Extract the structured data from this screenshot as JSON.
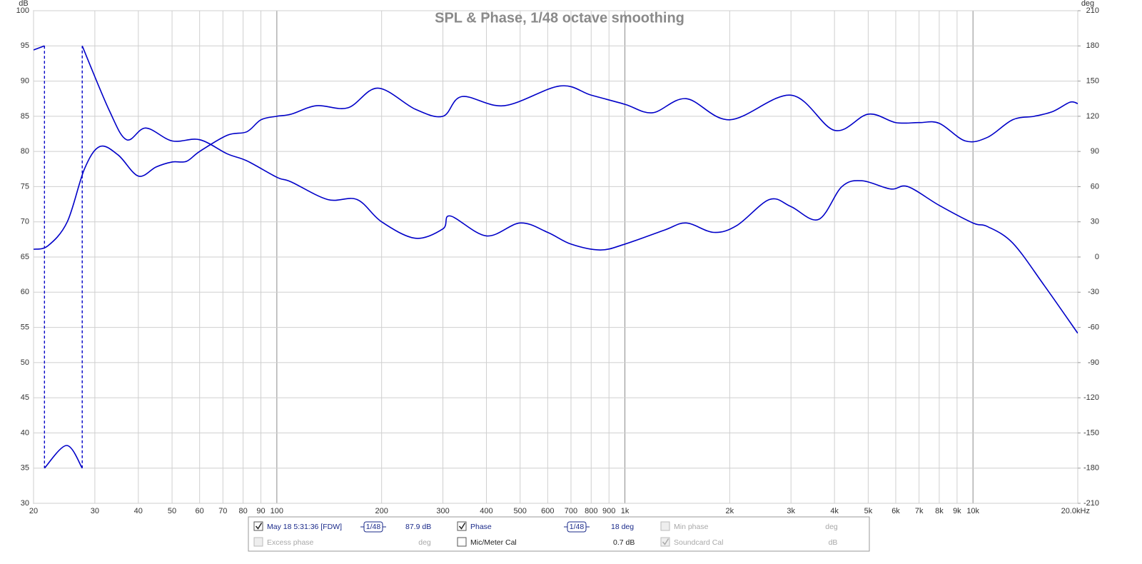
{
  "chart_data": {
    "type": "line",
    "title": "SPL & Phase, 1/48 octave smoothing",
    "ylabel": "dB",
    "y2label": "deg",
    "xscale": "log",
    "grid": true,
    "xlim": [
      20,
      20000
    ],
    "xticks": [
      20,
      30,
      40,
      50,
      60,
      70,
      80,
      90,
      100,
      200,
      300,
      400,
      500,
      600,
      700,
      800,
      900,
      {
        "value": 1000,
        "label": "1k"
      },
      {
        "value": 2000,
        "label": "2k"
      },
      {
        "value": 3000,
        "label": "3k"
      },
      {
        "value": 4000,
        "label": "4k"
      },
      {
        "value": 5000,
        "label": "5k"
      },
      {
        "value": 6000,
        "label": "6k"
      },
      {
        "value": 7000,
        "label": "7k"
      },
      {
        "value": 8000,
        "label": "8k"
      },
      {
        "value": 9000,
        "label": "9k"
      },
      {
        "value": 10000,
        "label": "10k"
      },
      {
        "value": 20000,
        "label": "20.0kHz"
      }
    ],
    "ylim": [
      30,
      100
    ],
    "yticks": [
      30,
      35,
      40,
      45,
      50,
      55,
      60,
      65,
      70,
      75,
      80,
      85,
      90,
      95,
      100
    ],
    "y2lim": [
      -210,
      210
    ],
    "y2ticks": [
      -210,
      -180,
      -150,
      -120,
      -90,
      -60,
      -30,
      0,
      30,
      60,
      90,
      120,
      150,
      180,
      210
    ],
    "series": [
      {
        "name": "SPL",
        "color": "#0000c8",
        "x": [
          20,
          22,
          25,
          28,
          31,
          35,
          40,
          45,
          50,
          55,
          60,
          72,
          82,
          90,
          100,
          110,
          130,
          160,
          195,
          250,
          300,
          340,
          450,
          650,
          800,
          1000,
          1200,
          1500,
          2000,
          3000,
          4000,
          5000,
          6000,
          7000,
          8000,
          9500,
          11000,
          13000,
          15000,
          17000,
          19000,
          20000
        ],
        "values": [
          66.1,
          66.6,
          70,
          77.5,
          80.7,
          79.5,
          76.5,
          77.8,
          78.5,
          78.6,
          80,
          82.3,
          82.8,
          84.5,
          85,
          85.3,
          86.5,
          86.2,
          89,
          86,
          85,
          87.8,
          86.5,
          89.3,
          88,
          86.7,
          85.5,
          87.5,
          84.5,
          88,
          83,
          85.3,
          84.1,
          84.1,
          84,
          81.5,
          82,
          84.5,
          85,
          85.7,
          87,
          86.8
        ]
      },
      {
        "name": "Phase",
        "color": "#0000c8",
        "axis": "y2",
        "x": [
          20,
          21.5,
          null,
          21.5,
          24.9,
          27.6,
          null,
          27.6,
          33,
          37,
          42,
          50,
          60,
          72,
          82,
          100,
          110,
          140,
          170,
          200,
          250,
          300,
          315,
          400,
          500,
          600,
          700,
          850,
          1000,
          1300,
          1500,
          1800,
          2100,
          2600,
          3000,
          3600,
          4200,
          4800,
          5800,
          6500,
          8000,
          10000,
          11000,
          13000,
          16000,
          20000
        ],
        "values": [
          176.5,
          180,
          null,
          -180,
          -160.7,
          -180,
          null,
          180,
          125,
          100,
          110,
          99,
          100,
          88,
          82,
          68,
          64,
          49,
          49,
          30,
          16,
          24,
          35,
          18,
          29,
          21,
          11,
          6,
          11,
          23,
          29,
          21,
          27,
          49,
          43,
          32,
          60,
          65,
          58,
          60,
          44,
          29,
          26,
          12,
          -24,
          -65
        ]
      }
    ]
  },
  "legend": {
    "measurement": "May 18 5:31:36 [FDW]",
    "smoothing": "1/48",
    "spl_value": "87.9 dB",
    "phase": "Phase",
    "phase_smoothing": "1/48",
    "phase_value": "18 deg",
    "min_phase": "Min phase",
    "min_phase_unit": "deg",
    "excess_phase": "Excess phase",
    "excess_phase_unit": "deg",
    "mic_cal": "Mic/Meter Cal",
    "mic_cal_value": "0.7 dB",
    "soundcard_cal": "Soundcard Cal",
    "soundcard_cal_unit": "dB"
  }
}
